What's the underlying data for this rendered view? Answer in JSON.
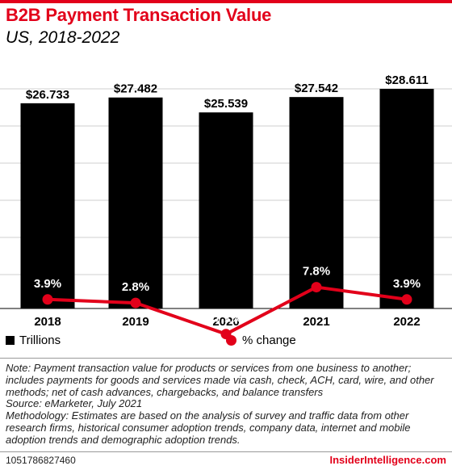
{
  "title": "B2B Payment Transaction Value",
  "subtitle": "US, 2018-2022",
  "colors": {
    "bar": "#000000",
    "line": "#e2001a",
    "accent": "#e2001a"
  },
  "legend": {
    "bars_label": "Trillions",
    "line_label": "% change"
  },
  "chart_data": {
    "type": "bar",
    "categories": [
      "2018",
      "2019",
      "2020",
      "2021",
      "2022"
    ],
    "series": [
      {
        "name": "Trillions",
        "type": "bar",
        "values": [
          26.733,
          27.482,
          25.539,
          27.542,
          28.611
        ],
        "labels": [
          "$26.733",
          "$27.482",
          "$25.539",
          "$27.542",
          "$28.611"
        ]
      },
      {
        "name": "% change",
        "type": "line",
        "values": [
          3.9,
          2.8,
          -7.1,
          7.8,
          3.9
        ],
        "labels": [
          "3.9%",
          "2.8%",
          "-7.1%",
          "7.8%",
          "3.9%"
        ]
      }
    ],
    "grid": true,
    "legend_position": "bottom"
  },
  "notes": [
    "Note: Payment transaction value for products or services from one business to another;",
    "includes payments for goods and services made via cash, check, ACH, card, wire, and other",
    "methods; net of cash advances, chargebacks, and balance transfers",
    "Source: eMarketer, July 2021",
    "Methodology:  Estimates are based on the analysis of survey and traffic data from other",
    "research firms, historical consumer adoption trends, company data, internet and mobile",
    "adoption trends and demographic adoption trends."
  ],
  "footer": {
    "chart_id": "1051786827460",
    "brand": "InsiderIntelligence.com"
  }
}
